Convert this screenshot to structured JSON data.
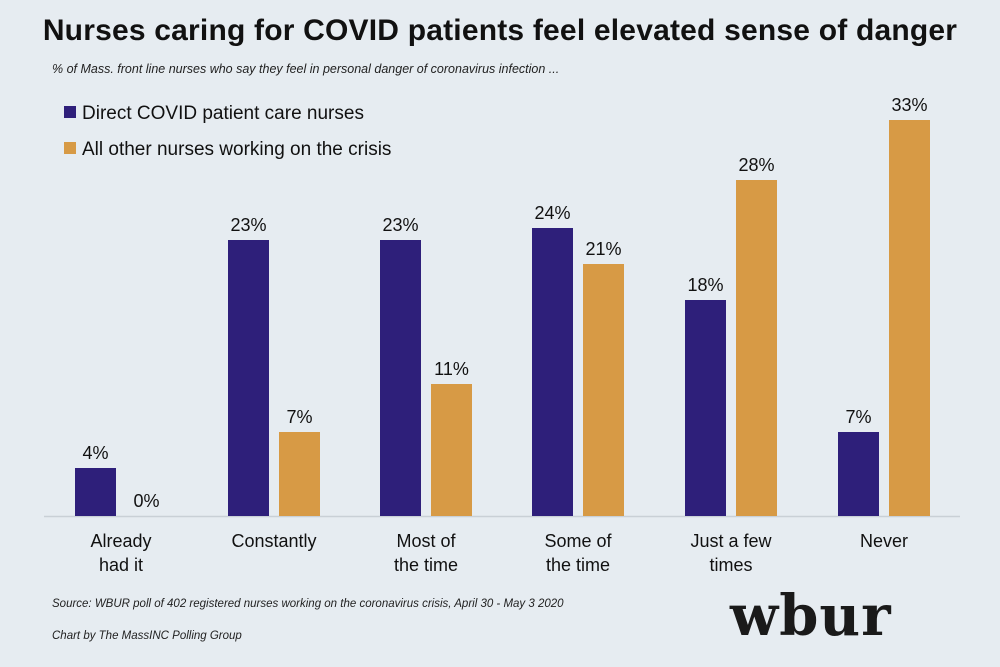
{
  "title": "Nurses caring for COVID patients feel elevated sense of danger",
  "subtitle": "% of Mass. front line nurses who say they feel in personal danger of coronavirus infection ...",
  "source": "Source: WBUR poll of 402 registered nurses working on the coronavirus crisis, April 30 - May 3 2020",
  "credit": "Chart by The MassINC Polling Group",
  "logo": "wbur",
  "colors": {
    "series1": "#2e1f7a",
    "series2": "#d79a45",
    "axis": "#c9d0d6",
    "text": "#111111"
  },
  "chart_data": {
    "type": "bar",
    "categories": [
      [
        "Already",
        "had it"
      ],
      [
        "Constantly"
      ],
      [
        "Most of",
        "the time"
      ],
      [
        "Some of",
        "the time"
      ],
      [
        "Just a few",
        "times"
      ],
      [
        "Never"
      ]
    ],
    "series": [
      {
        "name": "Direct COVID patient care nurses",
        "values": [
          4,
          23,
          23,
          24,
          18,
          7
        ],
        "labels": [
          "4%",
          "23%",
          "23%",
          "24%",
          "18%",
          "7%"
        ]
      },
      {
        "name": "All other nurses working on the crisis",
        "values": [
          0,
          7,
          11,
          21,
          28,
          33
        ],
        "labels": [
          "0%",
          "7%",
          "11%",
          "21%",
          "28%",
          "33%"
        ]
      }
    ],
    "title": "Nurses caring for COVID patients feel elevated sense of danger",
    "xlabel": "",
    "ylabel": "",
    "ylim": [
      0,
      33
    ],
    "grid": false,
    "legend": "top-left"
  }
}
